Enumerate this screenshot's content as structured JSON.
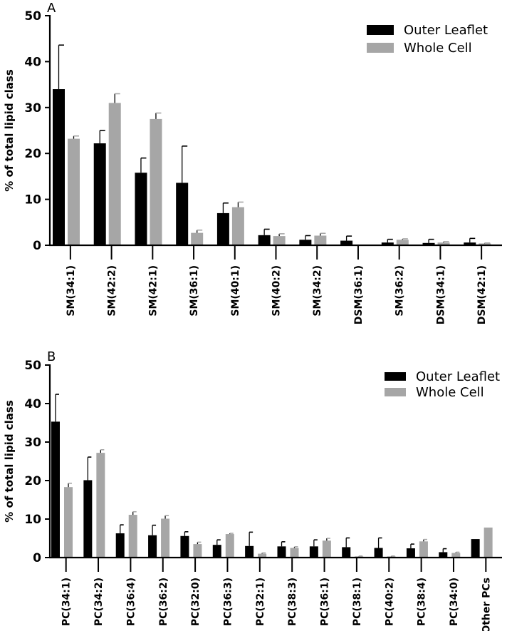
{
  "chart_data": [
    {
      "panel": "A",
      "type": "bar",
      "title": "",
      "xlabel": "",
      "ylabel": "% of total lipid class",
      "ylim": [
        0,
        50
      ],
      "yticks": [
        0,
        10,
        20,
        30,
        40,
        50
      ],
      "grid": false,
      "legend_position": "top-right",
      "categories": [
        "SM(34:1)",
        "SM(42:2)",
        "SM(42:1)",
        "SM(36:1)",
        "SM(40:1)",
        "SM(40:2)",
        "SM(34:2)",
        "DSM(36:1)",
        "SM(36:2)",
        "DSM(34:1)",
        "DSM(42:1)"
      ],
      "series": [
        {
          "name": "Outer Leaflet",
          "color": "#000000",
          "values": [
            34.0,
            22.2,
            15.8,
            13.6,
            7.0,
            2.2,
            1.2,
            1.0,
            0.6,
            0.5,
            0.6
          ],
          "errors": [
            9.6,
            2.8,
            3.2,
            8.0,
            2.2,
            1.3,
            0.9,
            1.0,
            0.7,
            0.8,
            0.9
          ]
        },
        {
          "name": "Whole Cell",
          "color": "#a6a6a6",
          "values": [
            23.2,
            31.0,
            27.5,
            2.7,
            8.3,
            2.0,
            2.1,
            0.0,
            1.2,
            0.6,
            0.4
          ],
          "errors": [
            0.6,
            2.0,
            1.3,
            0.6,
            1.1,
            0.5,
            0.5,
            0.0,
            0.2,
            0.2,
            0.1
          ]
        }
      ]
    },
    {
      "panel": "B",
      "type": "bar",
      "title": "",
      "xlabel": "",
      "ylabel": "% of total lipid class",
      "ylim": [
        0,
        50
      ],
      "yticks": [
        0,
        10,
        20,
        30,
        40,
        50
      ],
      "grid": false,
      "legend_position": "top-right",
      "categories": [
        "PC(34:1)",
        "PC(34:2)",
        "PC(36:4)",
        "PC(36:2)",
        "PC(32:0)",
        "PC(36:3)",
        "PC(32:1)",
        "PC(38:3)",
        "PC(36:1)",
        "PC(38:1)",
        "PC(40:2)",
        "PC(38:4)",
        "PC(34:0)",
        "Other PCs"
      ],
      "series": [
        {
          "name": "Outer Leaflet",
          "color": "#000000",
          "values": [
            35.3,
            20.1,
            6.3,
            5.8,
            5.6,
            3.3,
            3.0,
            2.9,
            2.9,
            2.7,
            2.5,
            2.4,
            1.4,
            4.8
          ],
          "errors": [
            7.1,
            6.0,
            2.2,
            2.6,
            1.1,
            1.3,
            3.6,
            1.2,
            1.7,
            2.4,
            2.6,
            1.1,
            0.9,
            0.0
          ]
        },
        {
          "name": "Whole Cell",
          "color": "#a6a6a6",
          "values": [
            18.3,
            27.2,
            11.1,
            10.1,
            3.5,
            6.1,
            1.0,
            2.5,
            4.4,
            0.3,
            0.3,
            4.2,
            1.2,
            7.8
          ],
          "errors": [
            1.0,
            0.8,
            0.8,
            0.8,
            0.5,
            0.2,
            0.2,
            0.3,
            0.6,
            0.1,
            0.1,
            0.5,
            0.2,
            0.0
          ]
        }
      ]
    }
  ]
}
